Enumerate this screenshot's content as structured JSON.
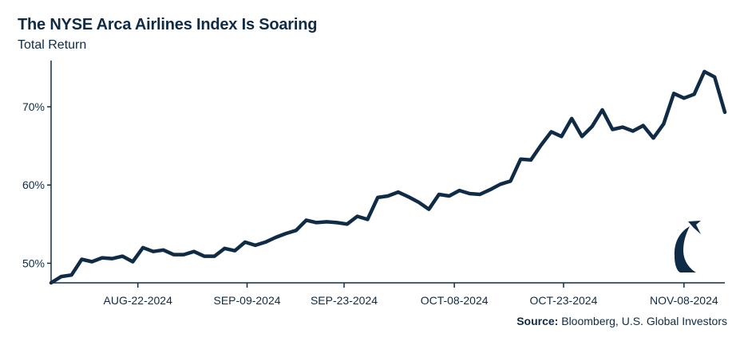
{
  "chart_data": {
    "type": "line",
    "title": "The NYSE Arca Airlines Index Is Soaring",
    "subtitle": "Total Return",
    "xlabel": "",
    "ylabel": "",
    "ylim": [
      47.5,
      75.5
    ],
    "y_ticks": [
      50,
      60,
      70
    ],
    "y_tick_labels": [
      "50%",
      "60%",
      "70%"
    ],
    "x_tick_labels": [
      "AUG-22-2024",
      "SEP-09-2024",
      "SEP-23-2024",
      "OCT-08-2024",
      "OCT-23-2024",
      "NOV-08-2024"
    ],
    "x_tick_index": [
      8.5,
      19.2,
      28.7,
      39.5,
      50.2,
      62.0
    ],
    "grid": false,
    "legend": "none",
    "color": "#0f2b45",
    "series": [
      {
        "values": [
          47.5,
          48.3,
          48.5,
          50.5,
          50.2,
          50.7,
          50.6,
          50.9,
          50.2,
          52.0,
          51.5,
          51.7,
          51.1,
          51.1,
          51.5,
          50.9,
          50.9,
          51.9,
          51.6,
          52.7,
          52.3,
          52.7,
          53.3,
          53.8,
          54.2,
          55.5,
          55.2,
          55.3,
          55.2,
          55.0,
          56.0,
          55.6,
          58.4,
          58.6,
          59.1,
          58.5,
          57.8,
          56.9,
          58.8,
          58.6,
          59.3,
          58.9,
          58.8,
          59.4,
          60.1,
          60.5,
          63.3,
          63.2,
          65.1,
          66.8,
          66.2,
          68.5,
          66.2,
          67.5,
          69.6,
          67.1,
          67.4,
          66.9,
          67.6,
          66.0,
          67.8,
          71.7,
          71.1,
          71.6,
          74.5,
          73.8,
          69.3
        ]
      }
    ]
  },
  "source": {
    "label": "Source:",
    "text": " Bloomberg, U.S. Global Investors"
  },
  "logo": {
    "icon": "u-s-global-investors-eagle-logo"
  }
}
